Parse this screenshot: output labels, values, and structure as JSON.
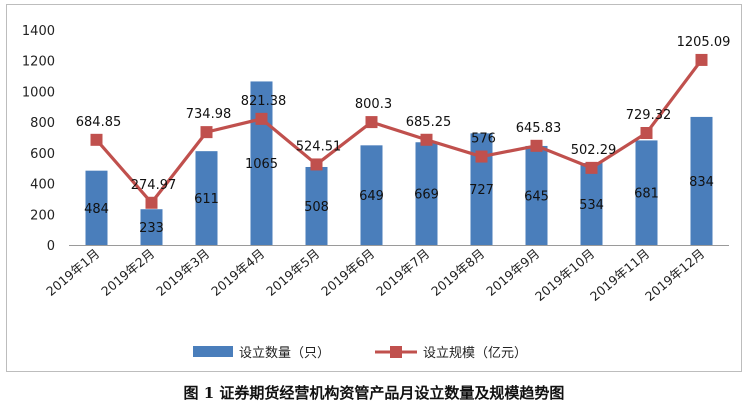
{
  "caption": "图 1 证券期货经营机构资管产品月设立数量及规模趋势图",
  "chart_data": {
    "type": "bar+line",
    "categories": [
      "2019年1月",
      "2019年2月",
      "2019年3月",
      "2019年4月",
      "2019年5月",
      "2019年6月",
      "2019年7月",
      "2019年8月",
      "2019年9月",
      "2019年10月",
      "2019年11月",
      "2019年12月"
    ],
    "ylim": [
      0,
      1400
    ],
    "yticks": [
      0,
      200,
      400,
      600,
      800,
      1000,
      1200,
      1400
    ],
    "grid": false,
    "legend_position": "bottom",
    "series": [
      {
        "name": "设立数量（只）",
        "kind": "bar",
        "color": "#4a7ebb",
        "values": [
          484,
          233,
          611,
          1065,
          508,
          649,
          669,
          727,
          645,
          534,
          681,
          834
        ],
        "labels": [
          "484",
          "233",
          "611",
          "1065",
          "508",
          "649",
          "669",
          "727",
          "645",
          "534",
          "681",
          "834"
        ]
      },
      {
        "name": "设立规模（亿元）",
        "kind": "line",
        "color": "#c0504d",
        "values": [
          684.85,
          274.97,
          734.98,
          821.38,
          524.51,
          800.3,
          685.25,
          576,
          645.83,
          502.29,
          729.32,
          1205.09
        ],
        "labels": [
          "684.85",
          "274.97",
          "734.98",
          "821.38",
          "524.51",
          "800.3",
          "685.25",
          "576",
          "645.83",
          "502.29",
          "729.32",
          "1205.09"
        ]
      }
    ]
  }
}
